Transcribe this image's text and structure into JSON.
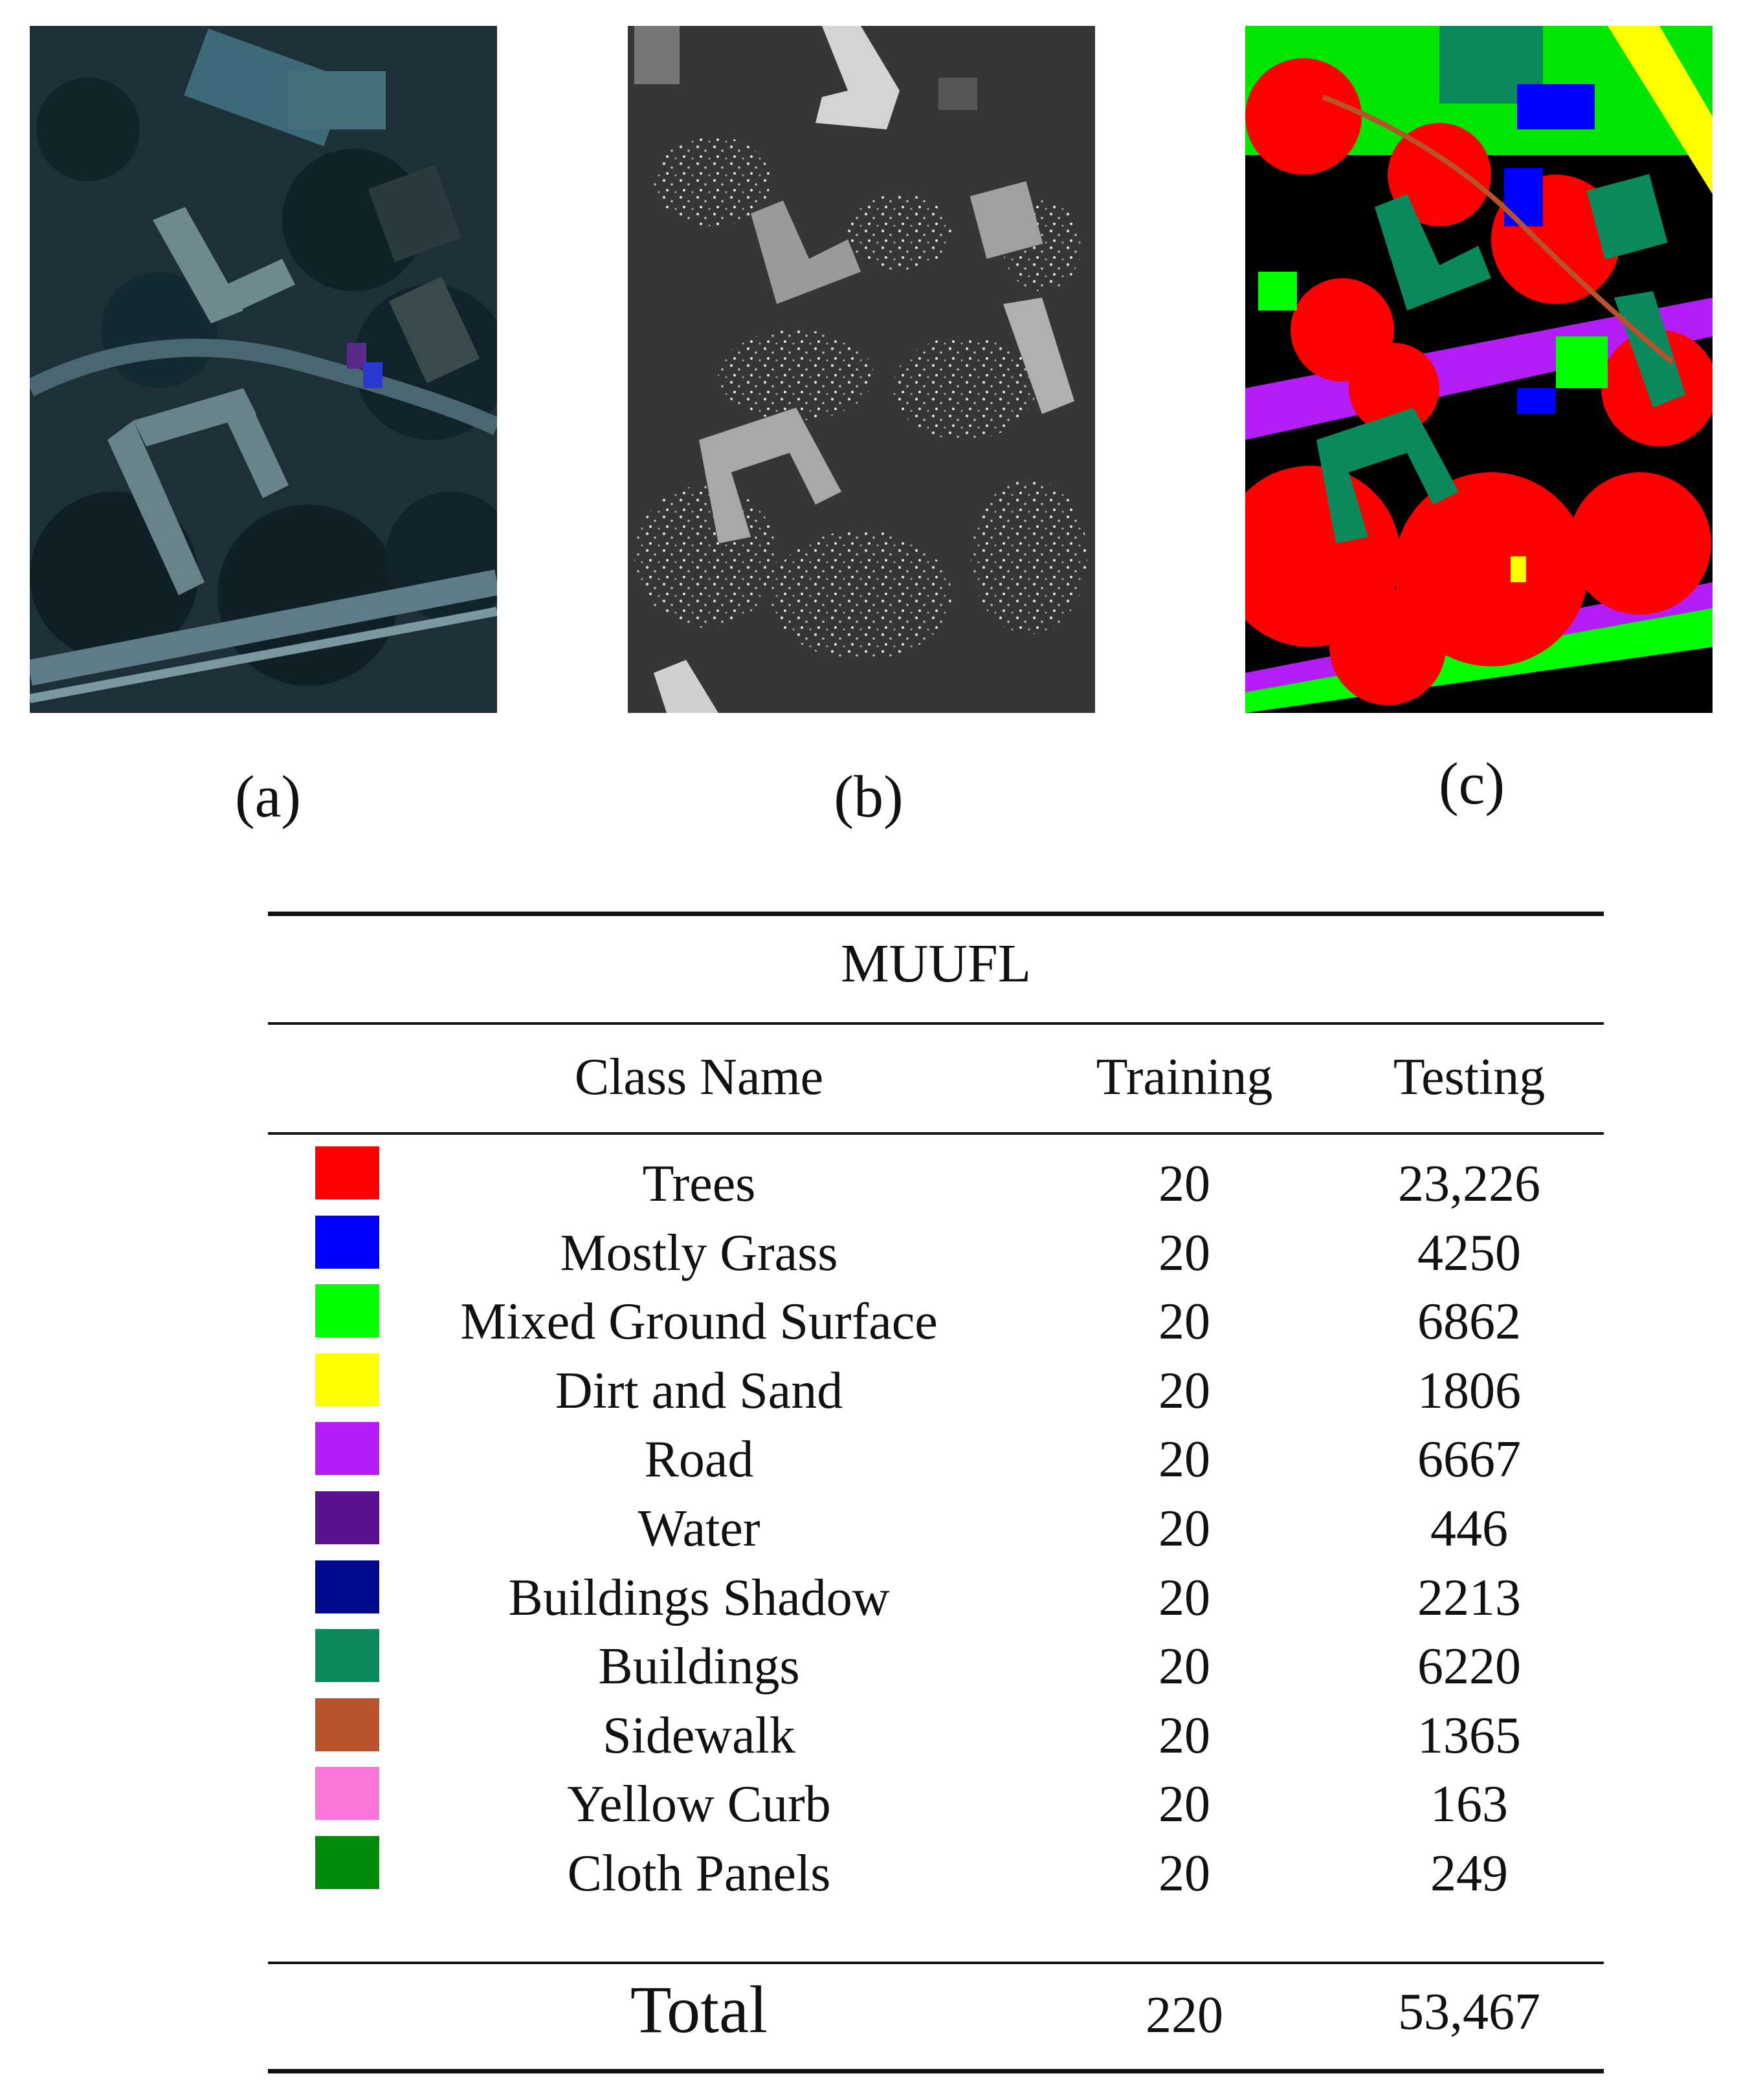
{
  "figure": {
    "subfigure_labels": [
      "(a)",
      "(b)",
      "(c)"
    ]
  },
  "table": {
    "title": "MUUFL",
    "headers": {
      "class_name": "Class Name",
      "training": "Training",
      "testing": "Testing"
    },
    "rows": [
      {
        "name": "Trees",
        "training": "20",
        "testing": "23,226",
        "color": "#ff0000"
      },
      {
        "name": "Mostly Grass",
        "training": "20",
        "testing": "4250",
        "color": "#0000ff"
      },
      {
        "name": "Mixed Ground Surface",
        "training": "20",
        "testing": "6862",
        "color": "#00ff00"
      },
      {
        "name": "Dirt and Sand",
        "training": "20",
        "testing": "1806",
        "color": "#ffff00"
      },
      {
        "name": "Road",
        "training": "20",
        "testing": "6667",
        "color": "#b41cf8"
      },
      {
        "name": "Water",
        "training": "20",
        "testing": "446",
        "color": "#5c1290"
      },
      {
        "name": "Buildings Shadow",
        "training": "20",
        "testing": "2213",
        "color": "#000a8a"
      },
      {
        "name": "Buildings",
        "training": "20",
        "testing": "6220",
        "color": "#0a8a5c"
      },
      {
        "name": "Sidewalk",
        "training": "20",
        "testing": "1365",
        "color": "#b8522a"
      },
      {
        "name": "Yellow Curb",
        "training": "20",
        "testing": "163",
        "color": "#f776d8"
      },
      {
        "name": "Cloth Panels",
        "training": "20",
        "testing": "249",
        "color": "#008c0a"
      }
    ],
    "total": {
      "label": "Total",
      "training": "220",
      "testing": "53,467"
    }
  }
}
